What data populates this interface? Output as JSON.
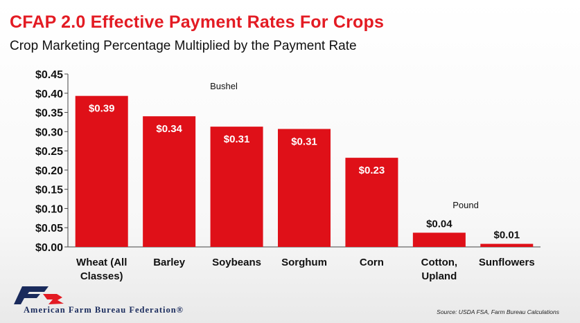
{
  "header": {
    "title": "CFAP 2.0 Effective Payment Rates For Crops",
    "subtitle": "Crop Marketing Percentage Multiplied by the Payment Rate"
  },
  "chart_data": {
    "type": "bar",
    "title": "CFAP 2.0 Effective Payment Rates For Crops",
    "subtitle": "Crop Marketing Percentage Multiplied by the Payment Rate",
    "categories": [
      [
        "Wheat (All",
        "Classes)"
      ],
      [
        "Barley"
      ],
      [
        "Soybeans"
      ],
      [
        "Sorghum"
      ],
      [
        "Corn"
      ],
      [
        "Cotton,",
        "Upland"
      ],
      [
        "Sunflowers"
      ]
    ],
    "values": [
      0.393,
      0.34,
      0.313,
      0.307,
      0.232,
      0.037,
      0.008
    ],
    "data_labels": [
      "$0.39",
      "$0.34",
      "$0.31",
      "$0.31",
      "$0.23",
      "$0.04",
      "$0.01"
    ],
    "yticks": [
      "$0.00",
      "$0.05",
      "$0.10",
      "$0.15",
      "$0.20",
      "$0.25",
      "$0.30",
      "$0.35",
      "$0.40",
      "$0.45"
    ],
    "ylim": [
      0,
      0.45
    ],
    "grid": false,
    "legend": "none",
    "bar_color": "#df1018",
    "annotations": [
      "Bushel",
      "Pound"
    ]
  },
  "footer": {
    "org_name": "American Farm Bureau Federation®",
    "source": "Source: USDA FSA, Farm Bureau Calculations"
  },
  "colors": {
    "accent": "#e31b23",
    "bar": "#df1018",
    "logo_navy": "#1a2b5c"
  }
}
